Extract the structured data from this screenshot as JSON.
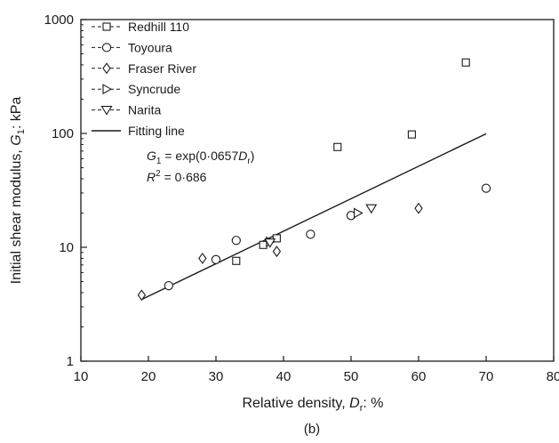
{
  "chart_data": {
    "type": "scatter",
    "xlabel": {
      "main": "Relative density, ",
      "sym": "D",
      "sub": "r",
      "tail": ": %"
    },
    "ylabel": {
      "main": "Initial shear modulus, ",
      "sym": "G",
      "sub": "1",
      "tail": ": kPa"
    },
    "xlim": [
      10,
      80
    ],
    "ylim": [
      1,
      1000
    ],
    "yscale": "log",
    "x_ticks": [
      "10",
      "20",
      "30",
      "40",
      "50",
      "60",
      "70",
      "80"
    ],
    "y_ticks": [
      "1",
      "10",
      "100",
      "1000"
    ],
    "grid": false,
    "legend_position": "top-left",
    "series": [
      {
        "name": "Redhill 110",
        "marker": "square",
        "x": [
          33,
          37,
          39,
          48,
          59,
          67
        ],
        "y": [
          7.6,
          10.5,
          12,
          76,
          98,
          420
        ]
      },
      {
        "name": "Toyoura",
        "marker": "circle",
        "x": [
          23,
          30,
          33,
          44,
          50,
          70
        ],
        "y": [
          4.6,
          7.8,
          11.5,
          13,
          19,
          33
        ]
      },
      {
        "name": "Fraser River",
        "marker": "diamond",
        "x": [
          19,
          28,
          39,
          60
        ],
        "y": [
          3.8,
          8,
          9.2,
          22
        ]
      },
      {
        "name": "Syncrude",
        "marker": "triangle-right",
        "x": [
          38,
          51
        ],
        "y": [
          11.2,
          20
        ]
      },
      {
        "name": "Narita",
        "marker": "triangle-down",
        "x": [
          38,
          53
        ],
        "y": [
          11,
          22
        ]
      }
    ],
    "fit_line": {
      "name": "Fitting line",
      "x_range": [
        19,
        70
      ],
      "coefficient": 0.0657
    },
    "annotations": {
      "equation": {
        "lhs_sym": "G",
        "lhs_sub": "1",
        "rhs_pre": " = exp(0·0657",
        "rhs_sym": "D",
        "rhs_sub": "r",
        "rhs_post": ")"
      },
      "r2": {
        "sym": "R",
        "sup": "2",
        "text": " = 0·686"
      }
    },
    "caption": "(b)"
  }
}
